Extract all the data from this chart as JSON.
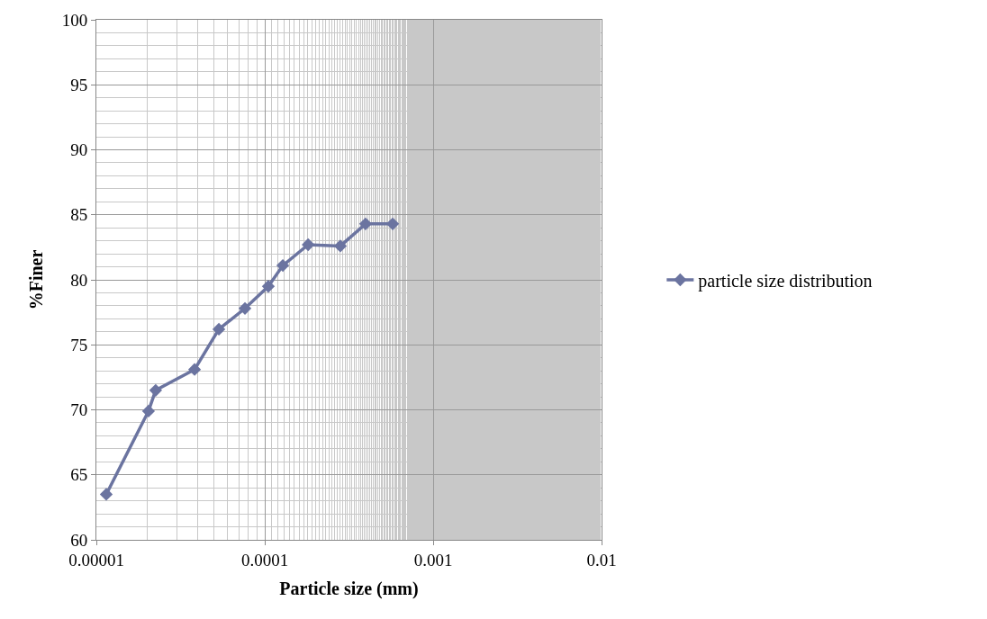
{
  "chart_data": {
    "type": "line",
    "xlabel": "Particle size (mm)",
    "ylabel": "%Finer",
    "x": [
      1.145e-05,
      2.04e-05,
      2.25e-05,
      3.83e-05,
      5.34e-05,
      7.63e-05,
      0.000105,
      0.000128,
      0.000181,
      0.000281,
      0.000397,
      0.000575
    ],
    "series": [
      {
        "name": "particle size distribution",
        "color": "#6b74a0",
        "values": [
          63.5,
          69.9,
          71.5,
          73.1,
          76.2,
          77.8,
          79.5,
          81.1,
          82.7,
          82.6,
          84.3,
          84.3
        ]
      }
    ],
    "log": "x",
    "xlim": [
      1e-05,
      0.01
    ],
    "xticks": [
      {
        "value": 1e-05,
        "label": "0.00001"
      },
      {
        "value": 0.0001,
        "label": "0.0001"
      },
      {
        "value": 0.001,
        "label": "0.001"
      },
      {
        "value": 0.01,
        "label": "0.01"
      }
    ],
    "ylim": [
      60,
      100
    ],
    "yticks": [
      60,
      65,
      70,
      75,
      80,
      85,
      90,
      95,
      100
    ],
    "grid": true,
    "legend": "right",
    "marker": "diamond",
    "line_style": "solid"
  }
}
